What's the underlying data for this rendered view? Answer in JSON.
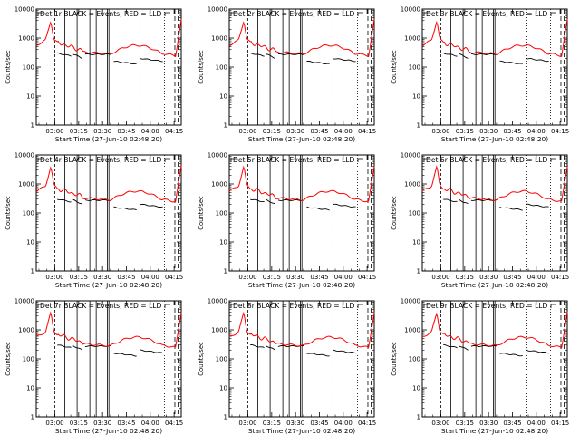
{
  "chart_data": {
    "type": "line",
    "ylabel": "Counts/sec",
    "xlabel": "Start Time (27-Jun-10 02:48:20)",
    "y_scale": "log",
    "ylim": [
      1,
      10000
    ],
    "y_ticks": [
      1,
      10,
      100,
      1000,
      10000
    ],
    "y_tick_labels": [
      "1",
      "10",
      "100",
      "1000",
      "10000"
    ],
    "x_tick_labels": [
      "03:00",
      "03:15",
      "03:30",
      "03:45",
      "04:00",
      "04:15"
    ],
    "series": [
      {
        "name": "Events",
        "color": "#000000"
      },
      {
        "name": "LLD",
        "color": "#ff0000"
      }
    ],
    "panels": [
      {
        "title": "Det 1r BLACK = Events, RED = LLD"
      },
      {
        "title": "Det 2r BLACK = Events, RED = LLD"
      },
      {
        "title": "Det 3r BLACK = Events, RED = LLD"
      },
      {
        "title": "Det 4r BLACK = Events, RED = LLD"
      },
      {
        "title": "Det 5r BLACK = Events, RED = LLD"
      },
      {
        "title": "Det 6r BLACK = Events, RED = LLD"
      },
      {
        "title": "Det 7r BLACK = Events, RED = LLD"
      },
      {
        "title": "Det 8r BLACK = Events, RED = LLD"
      },
      {
        "title": "Det 9r BLACK = Events, RED = LLD"
      }
    ]
  }
}
